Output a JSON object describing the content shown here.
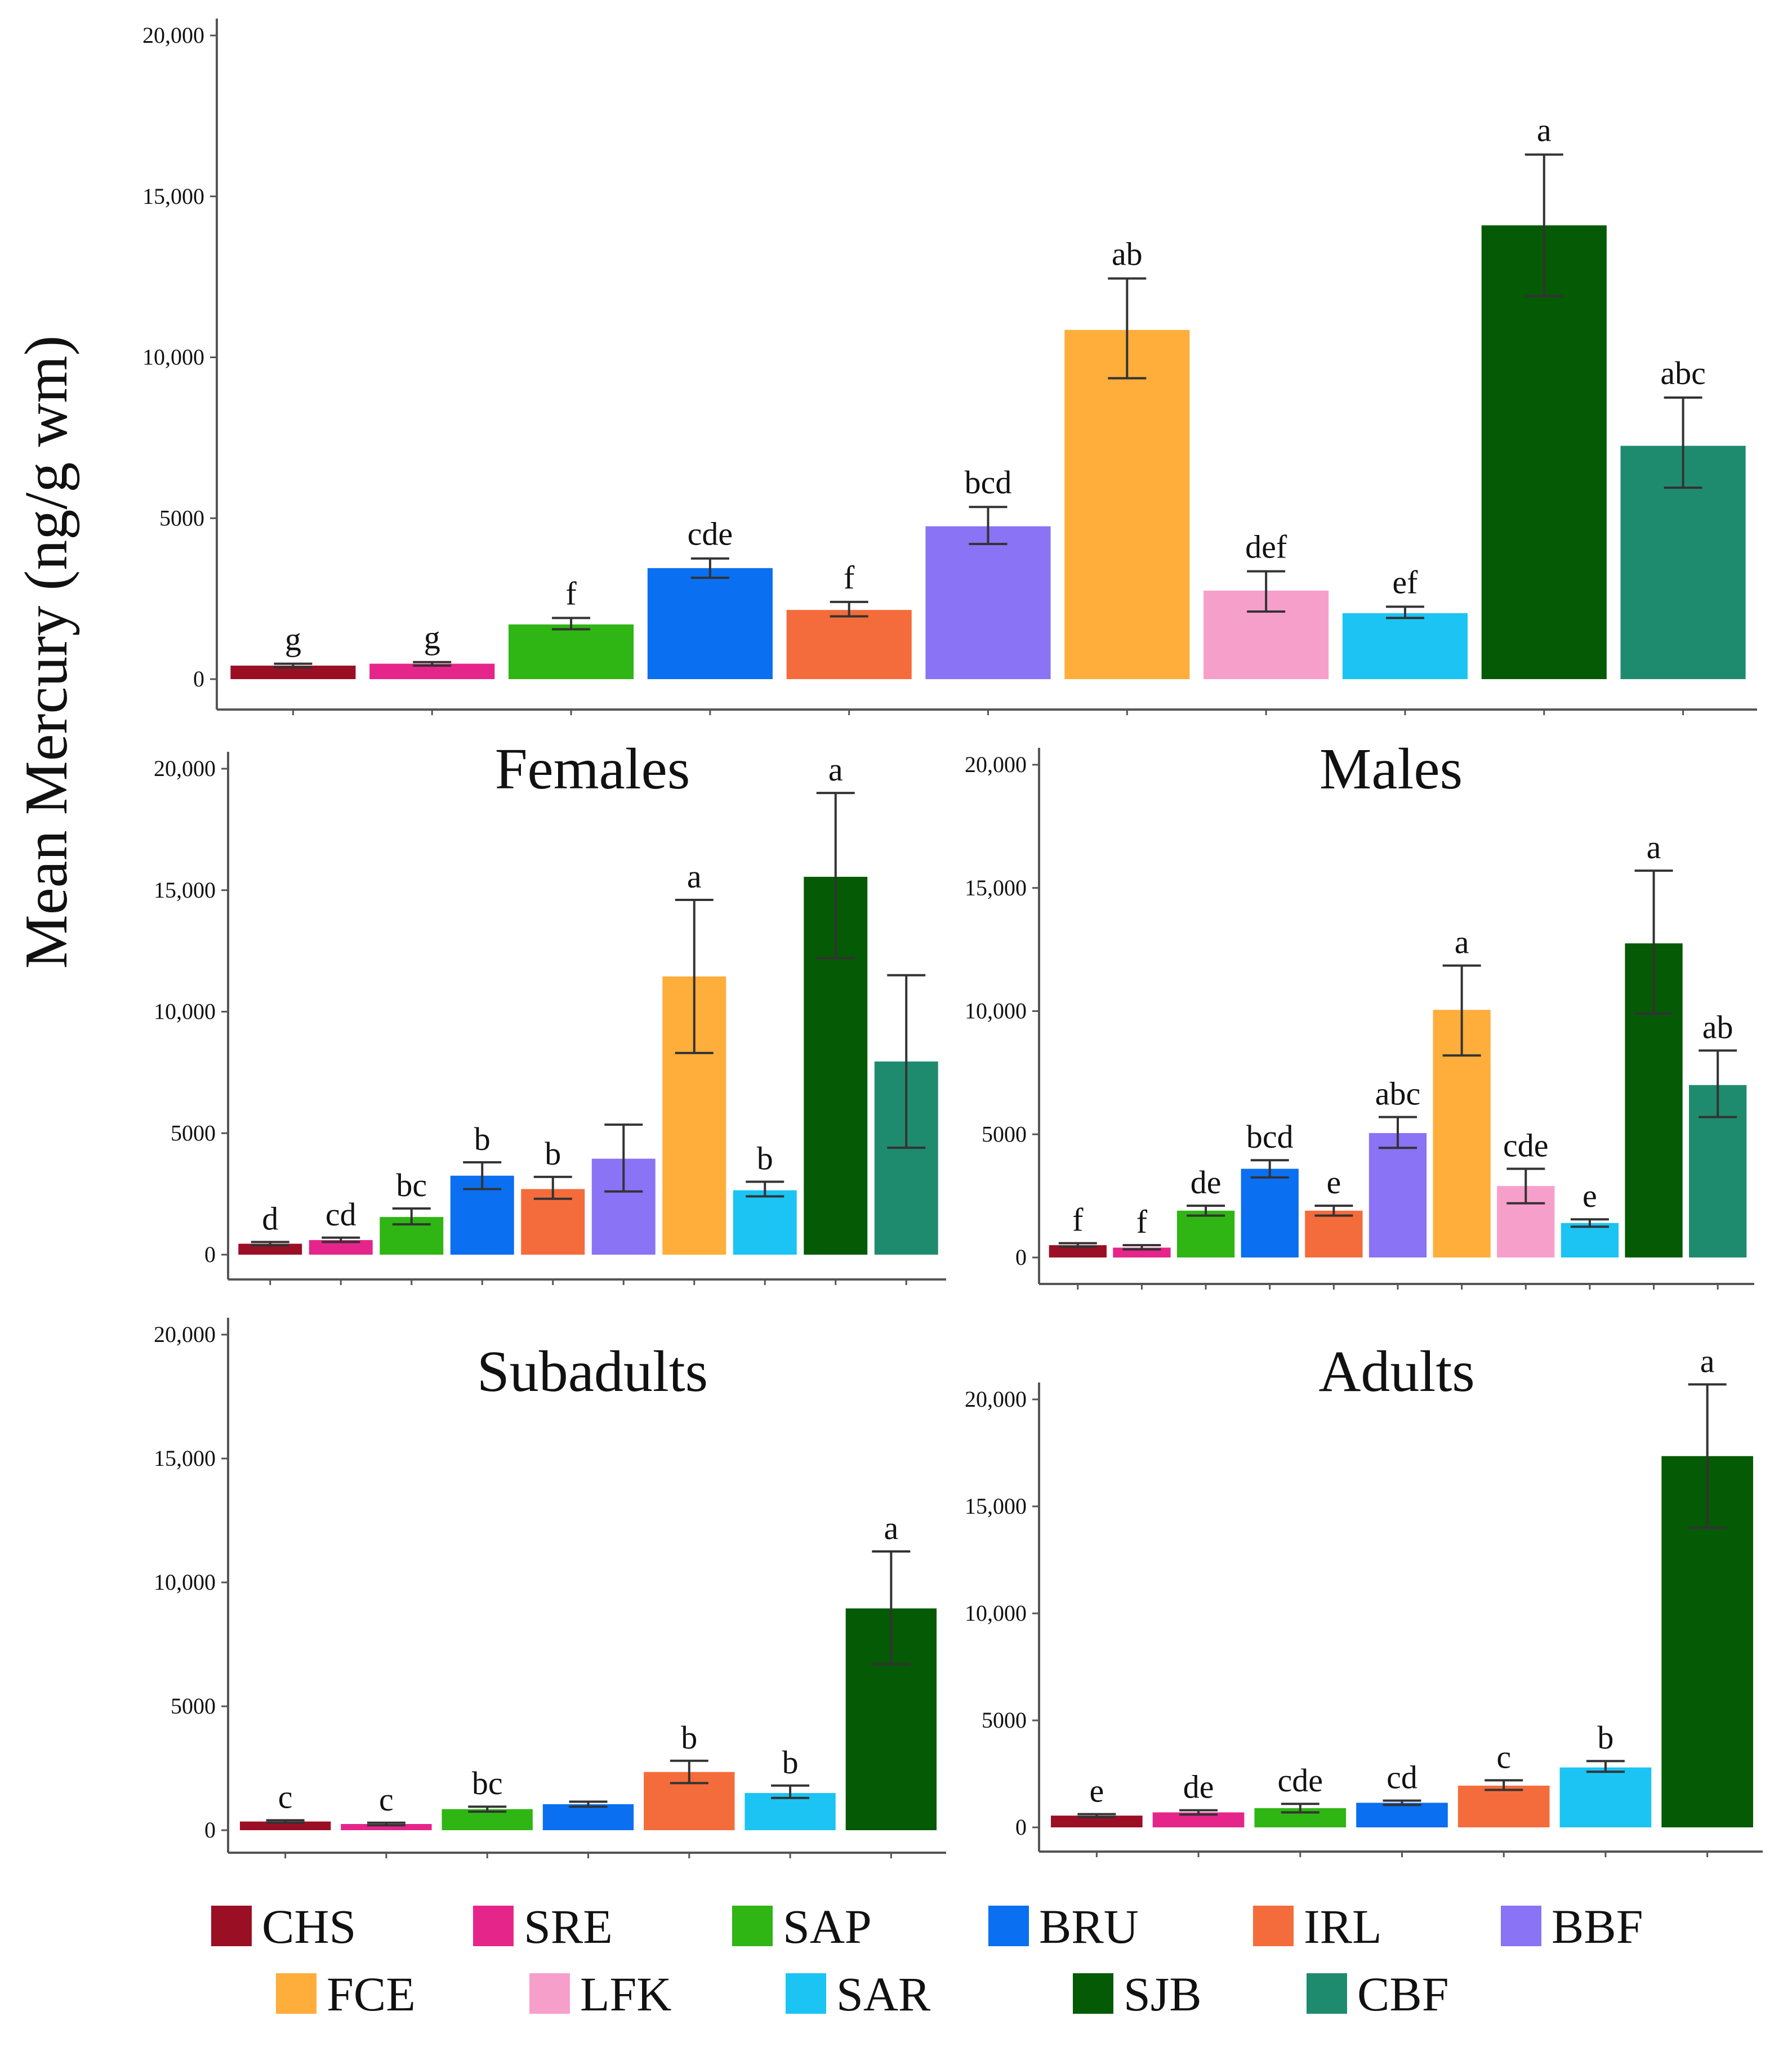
{
  "figure": {
    "ylabel": "Mean Mercury (ng/g wm)"
  },
  "colors": {
    "CHS": "#9b0f25",
    "SRE": "#e6258b",
    "SAP": "#2fb514",
    "BRU": "#0a6ff0",
    "IRL": "#f46c3b",
    "BBF": "#8a73f5",
    "FCE": "#ffad3b",
    "LFK": "#f79fcb",
    "SAR": "#1bc4f3",
    "SJB": "#055a05",
    "CBF": "#1f8b6e"
  },
  "legend": {
    "items": [
      "CHS",
      "SRE",
      "SAP",
      "BRU",
      "IRL",
      "BBF",
      "FCE",
      "LFK",
      "SAR",
      "SJB",
      "CBF"
    ]
  },
  "chart_data": [
    {
      "type": "bar",
      "title": "",
      "xlabel": "",
      "ylabel": "Mean Mercury (ng/g wm)",
      "ylim": [
        0,
        20000
      ],
      "ticks": [
        0,
        5000,
        10000,
        15000,
        20000
      ],
      "tick_labels": [
        "0",
        "5000",
        "10,000",
        "15,000",
        "20,000"
      ],
      "categories": [
        "CHS",
        "SRE",
        "SAP",
        "BRU",
        "IRL",
        "BBF",
        "FCE",
        "LFK",
        "SAR",
        "SJB",
        "CBF"
      ],
      "values": [
        420,
        480,
        1700,
        3450,
        2150,
        4750,
        10850,
        2750,
        2050,
        14100,
        7250
      ],
      "err_low": [
        360,
        420,
        1550,
        3150,
        1950,
        4200,
        9350,
        2100,
        1900,
        11900,
        5950
      ],
      "err_high": [
        480,
        530,
        1900,
        3750,
        2400,
        5350,
        12450,
        3350,
        2250,
        16300,
        8750
      ],
      "sig_labels": [
        "g",
        "g",
        "f",
        "cde",
        "f",
        "bcd",
        "ab",
        "def",
        "ef",
        "a",
        "abc"
      ]
    },
    {
      "type": "bar",
      "title": "Females",
      "ylim": [
        0,
        20000
      ],
      "ticks": [
        0,
        5000,
        10000,
        15000,
        20000
      ],
      "tick_labels": [
        "0",
        "5000",
        "10,000",
        "15,000",
        "20,000"
      ],
      "categories": [
        "CHS",
        "SRE",
        "SAP",
        "BRU",
        "IRL",
        "BBF",
        "FCE",
        "SAR",
        "SJB",
        "CBF"
      ],
      "values": [
        450,
        600,
        1550,
        3250,
        2700,
        3950,
        11450,
        2650,
        15550,
        7950
      ],
      "err_low": [
        380,
        520,
        1250,
        2700,
        2300,
        2600,
        8300,
        2400,
        12200,
        4400
      ],
      "err_high": [
        520,
        700,
        1900,
        3800,
        3200,
        5350,
        14600,
        3000,
        19000,
        11500
      ],
      "sig_labels": [
        "d",
        "cd",
        "bc",
        "b",
        "b",
        "",
        "a",
        "b",
        "a",
        ""
      ]
    },
    {
      "type": "bar",
      "title": "Males",
      "ylim": [
        0,
        20000
      ],
      "ticks": [
        0,
        5000,
        10000,
        15000,
        20000
      ],
      "tick_labels": [
        "0",
        "5000",
        "10,000",
        "15,000",
        "20,000"
      ],
      "categories": [
        "CHS",
        "SRE",
        "SAP",
        "BRU",
        "IRL",
        "BBF",
        "FCE",
        "LFK",
        "SAR",
        "SJB",
        "CBF"
      ],
      "values": [
        500,
        400,
        1900,
        3600,
        1900,
        5050,
        10050,
        2900,
        1400,
        12750,
        7000
      ],
      "err_low": [
        430,
        330,
        1700,
        3250,
        1700,
        4450,
        8200,
        2200,
        1250,
        9900,
        5700
      ],
      "err_high": [
        580,
        500,
        2100,
        3950,
        2100,
        5700,
        11850,
        3600,
        1550,
        15700,
        8400
      ],
      "sig_labels": [
        "f",
        "f",
        "de",
        "bcd",
        "e",
        "abc",
        "a",
        "cde",
        "e",
        "a",
        "ab"
      ]
    },
    {
      "type": "bar",
      "title": "Subadults",
      "ylim": [
        0,
        20000
      ],
      "ticks": [
        0,
        5000,
        10000,
        15000,
        20000
      ],
      "tick_labels": [
        "0",
        "5000",
        "10,000",
        "15,000",
        "20,000"
      ],
      "categories": [
        "CHS",
        "SRE",
        "SAP",
        "BRU",
        "IRL",
        "SAR",
        "SJB"
      ],
      "values": [
        350,
        250,
        850,
        1050,
        2350,
        1500,
        8950
      ],
      "err_low": [
        300,
        200,
        750,
        950,
        1900,
        1300,
        6700
      ],
      "err_high": [
        400,
        300,
        950,
        1150,
        2800,
        1800,
        11250
      ],
      "sig_labels": [
        "c",
        "c",
        "bc",
        "",
        "b",
        "b",
        "a"
      ]
    },
    {
      "type": "bar",
      "title": "Adults",
      "ylim": [
        0,
        20000
      ],
      "ticks": [
        0,
        5000,
        10000,
        15000,
        20000
      ],
      "tick_labels": [
        "0",
        "5000",
        "10,000",
        "15,000",
        "20,000"
      ],
      "categories": [
        "CHS",
        "SRE",
        "SAP",
        "BRU",
        "IRL",
        "SAR",
        "SJB"
      ],
      "values": [
        550,
        700,
        900,
        1150,
        1950,
        2800,
        17350
      ],
      "err_low": [
        480,
        600,
        700,
        1050,
        1750,
        2600,
        14000
      ],
      "err_high": [
        620,
        800,
        1100,
        1250,
        2200,
        3100,
        20700
      ],
      "sig_labels": [
        "e",
        "de",
        "cde",
        "cd",
        "c",
        "b",
        "a"
      ]
    }
  ]
}
